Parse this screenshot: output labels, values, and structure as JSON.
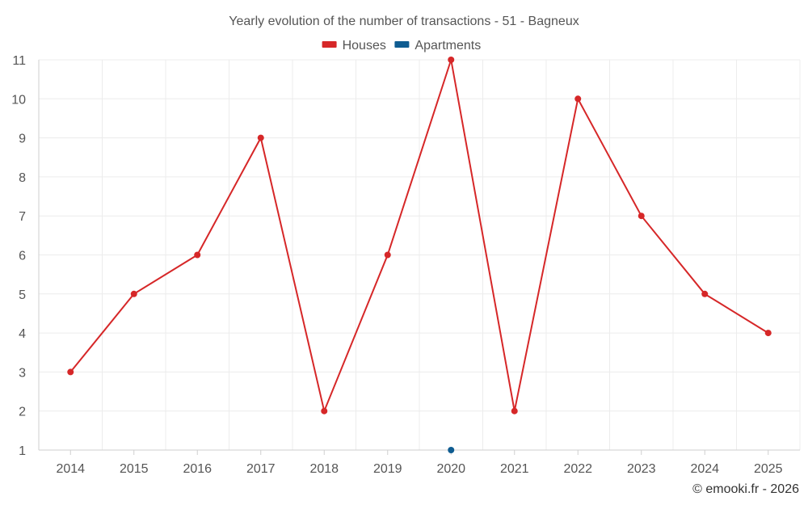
{
  "chart_data": {
    "type": "line",
    "title": "Yearly evolution of the number of transactions - 51 - Bagneux",
    "categories": [
      "2014",
      "2015",
      "2016",
      "2017",
      "2018",
      "2019",
      "2020",
      "2021",
      "2022",
      "2023",
      "2024",
      "2025"
    ],
    "series": [
      {
        "name": "Houses",
        "color": "#d62728",
        "values": [
          3,
          5,
          6,
          9,
          2,
          6,
          11,
          2,
          10,
          7,
          5,
          4
        ]
      },
      {
        "name": "Apartments",
        "color": "#0f5c91",
        "values": [
          null,
          null,
          null,
          null,
          null,
          null,
          1,
          null,
          null,
          null,
          null,
          null
        ]
      }
    ],
    "ylim": [
      1,
      11
    ],
    "yticks": [
      1,
      2,
      3,
      4,
      5,
      6,
      7,
      8,
      9,
      10,
      11
    ],
    "grid": true,
    "legend": "top-center",
    "credit": "© emooki.fr - 2026"
  }
}
